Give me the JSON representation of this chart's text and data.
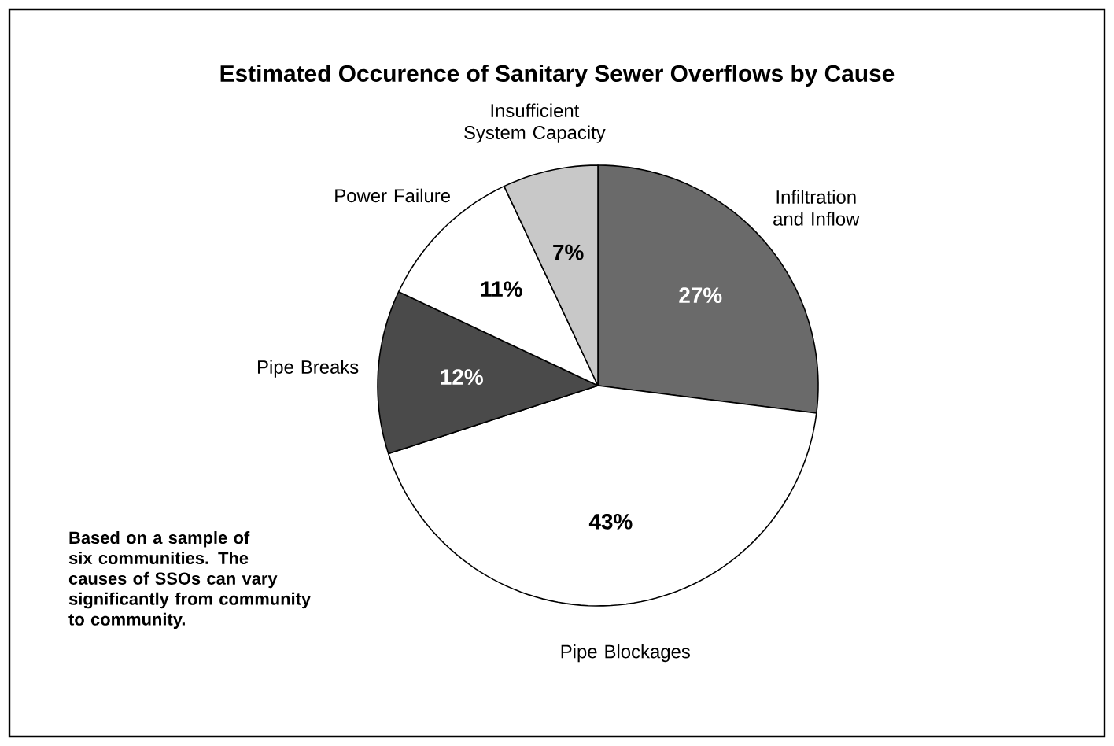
{
  "chart_data": {
    "type": "pie",
    "title": "Estimated Occurence of Sanitary Sewer Overflows by Cause",
    "categories": [
      "Infiltration and Inflow",
      "Pipe Blockages",
      "Pipe Breaks",
      "Power Failure",
      "Insufficient System Capacity"
    ],
    "values": [
      27,
      43,
      12,
      11,
      7
    ],
    "colors": [
      "#6a6a6a",
      "#ffffff",
      "#4a4a4a",
      "#ffffff",
      "#c8c8c8"
    ],
    "value_labels": [
      "27%",
      "43%",
      "12%",
      "11%",
      "7%"
    ],
    "annotations": [
      "Based on a sample of six communities. The causes of SSOs can vary significantly from community to community."
    ]
  }
}
